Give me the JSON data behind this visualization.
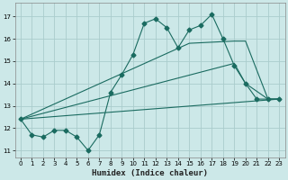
{
  "title": "",
  "xlabel": "Humidex (Indice chaleur)",
  "bg_color": "#cce8e8",
  "grid_color": "#aacccc",
  "line_color": "#1a6b60",
  "xlim": [
    -0.5,
    23.5
  ],
  "ylim": [
    10.7,
    17.6
  ],
  "yticks": [
    11,
    12,
    13,
    14,
    15,
    16,
    17
  ],
  "xticks": [
    0,
    1,
    2,
    3,
    4,
    5,
    6,
    7,
    8,
    9,
    10,
    11,
    12,
    13,
    14,
    15,
    16,
    17,
    18,
    19,
    20,
    21,
    22,
    23
  ],
  "line1_x": [
    0,
    1,
    2,
    3,
    4,
    5,
    6,
    7,
    8,
    9,
    10,
    11,
    12,
    13,
    14,
    15,
    16,
    17,
    18,
    19,
    20,
    21,
    22,
    23
  ],
  "line1_y": [
    12.4,
    11.7,
    11.6,
    11.9,
    11.9,
    11.6,
    11.0,
    11.7,
    13.6,
    14.4,
    15.3,
    16.7,
    16.9,
    16.5,
    15.6,
    16.4,
    16.6,
    17.1,
    16.0,
    14.8,
    14.0,
    13.3,
    13.3,
    13.3
  ],
  "line2_x": [
    0,
    23
  ],
  "line2_y": [
    12.4,
    13.3
  ],
  "line3_x": [
    0,
    19,
    20,
    22,
    23
  ],
  "line3_y": [
    12.4,
    14.9,
    14.0,
    13.3,
    13.3
  ],
  "line4_x": [
    0,
    15,
    19,
    20,
    22,
    23
  ],
  "line4_y": [
    12.4,
    15.8,
    15.9,
    15.9,
    13.3,
    13.3
  ]
}
